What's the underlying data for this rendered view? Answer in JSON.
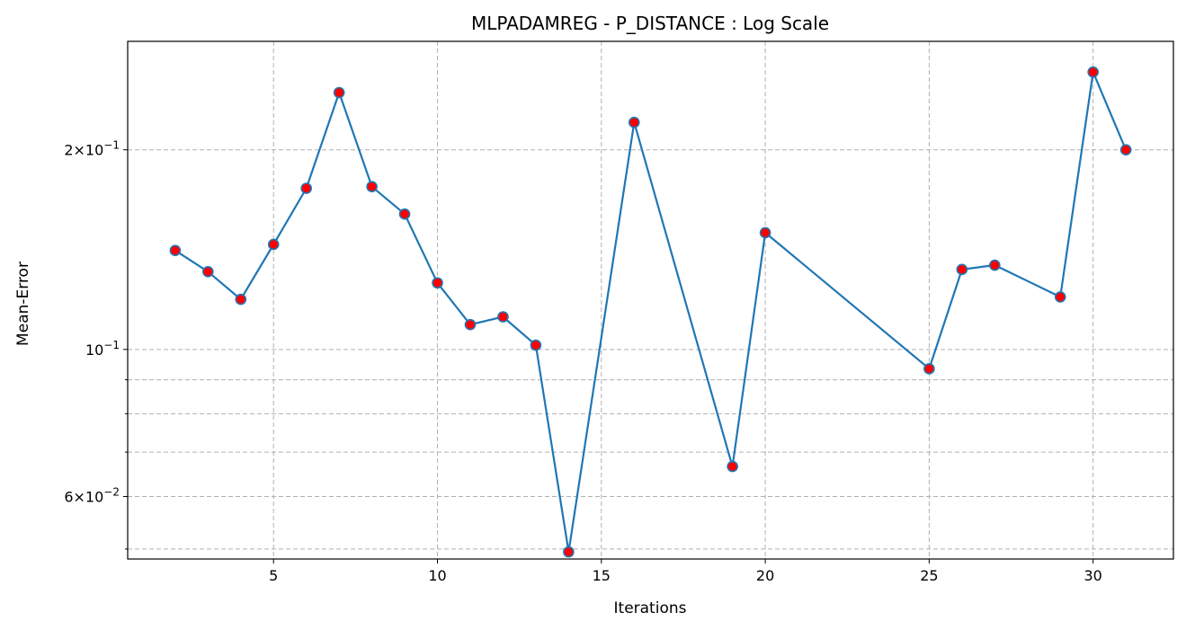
{
  "chart_data": {
    "type": "line",
    "title": "MLPADAMREG - P_DISTANCE : Log Scale",
    "xlabel": "Iterations",
    "ylabel": "Mean-Error",
    "yscale": "log",
    "grid": true,
    "xlim": [
      0.55,
      32.45
    ],
    "ylim": [
      0.0483,
      0.2915
    ],
    "xticks": [
      5,
      10,
      15,
      20,
      25,
      30
    ],
    "yticks_major": [
      {
        "value": 0.2,
        "mantissa": "2",
        "exp": "−1"
      },
      {
        "value": 0.1,
        "mantissa": "",
        "exp": "−1"
      },
      {
        "value": 0.06,
        "mantissa": "6",
        "exp": "−2"
      }
    ],
    "yticks_minor": [
      0.09,
      0.08,
      0.07,
      0.05
    ],
    "line_color": "#1f77b4",
    "marker_color": "#ff0000",
    "series": [
      {
        "x": [
          2,
          3,
          4,
          5,
          6,
          7,
          8,
          9,
          10,
          11,
          12,
          13,
          14,
          16,
          19,
          20,
          25,
          26,
          27,
          29,
          30,
          31
        ],
        "y": [
          0.141,
          0.131,
          0.119,
          0.144,
          0.175,
          0.244,
          0.176,
          0.16,
          0.126,
          0.109,
          0.112,
          0.1015,
          0.0495,
          0.22,
          0.0666,
          0.15,
          0.0935,
          0.132,
          0.134,
          0.12,
          0.262,
          0.2
        ]
      }
    ]
  }
}
